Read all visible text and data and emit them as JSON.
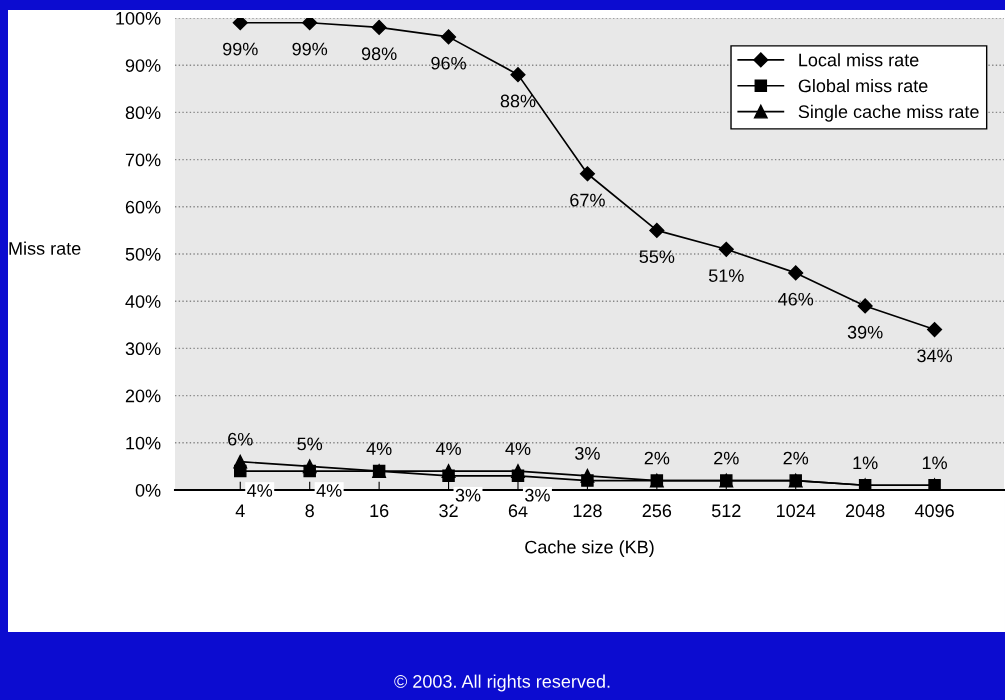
{
  "chart_data": {
    "type": "line",
    "xlabel": "Cache size (KB)",
    "ylabel": "Miss rate",
    "categories": [
      "4",
      "8",
      "16",
      "32",
      "64",
      "128",
      "256",
      "512",
      "1024",
      "2048",
      "4096"
    ],
    "ylim": [
      0,
      100
    ],
    "yticks": [
      {
        "value": 0,
        "label": "0%"
      },
      {
        "value": 10,
        "label": "10%"
      },
      {
        "value": 20,
        "label": "20%"
      },
      {
        "value": 30,
        "label": "30%"
      },
      {
        "value": 40,
        "label": "40%"
      },
      {
        "value": 50,
        "label": "50%"
      },
      {
        "value": 60,
        "label": "60%"
      },
      {
        "value": 70,
        "label": "70%"
      },
      {
        "value": 80,
        "label": "80%"
      },
      {
        "value": 90,
        "label": "90%"
      },
      {
        "value": 100,
        "label": "100%"
      }
    ],
    "grid": "y",
    "legend": "top right",
    "line_style": "solid",
    "series": [
      {
        "name": "Local miss rate",
        "color": "#000000",
        "marker": "diamond",
        "values": [
          99,
          99,
          98,
          96,
          88,
          67,
          55,
          51,
          46,
          39,
          34
        ],
        "value_labels": [
          "99%",
          "99%",
          "98%",
          "96%",
          "88%",
          "67%",
          "55%",
          "51%",
          "46%",
          "39%",
          "34%"
        ]
      },
      {
        "name": "Global miss rate",
        "color": "#000000",
        "marker": "square",
        "values": [
          4,
          4,
          4,
          3,
          3,
          2,
          2,
          2,
          2,
          1,
          1
        ],
        "value_labels": [
          "4%",
          "4%",
          null,
          "3%",
          "3%",
          null,
          null,
          null,
          null,
          null,
          null
        ]
      },
      {
        "name": "Single cache miss rate",
        "color": "#000000",
        "marker": "triangle",
        "values": [
          6,
          5,
          4,
          4,
          4,
          3,
          2,
          2,
          2,
          1,
          1
        ],
        "value_labels": [
          "6%",
          "5%",
          "4%",
          "4%",
          "4%",
          "3%",
          "2%",
          "2%",
          "2%",
          "1%",
          "1%"
        ]
      }
    ],
    "annotations": [
      "© 2003. All rights reserved."
    ]
  }
}
